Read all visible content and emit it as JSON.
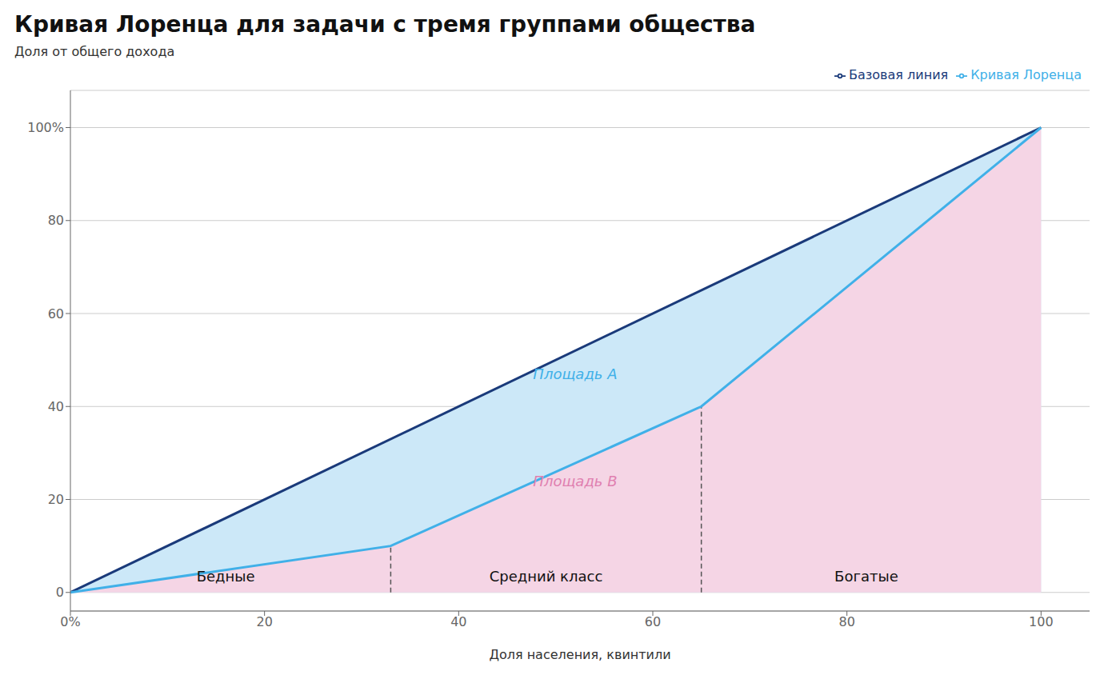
{
  "chart_data": {
    "type": "line",
    "title": "Кривая Лоренца для задачи с тремя группами общества",
    "ylabel": "Доля от общего дохода",
    "xlabel": "Доля населения, квинтили",
    "series": [
      {
        "name": "Базовая линия",
        "color": "#1a3a7a",
        "x": [
          0,
          100
        ],
        "values": [
          0,
          100
        ]
      },
      {
        "name": "Кривая Лоренца",
        "color": "#40b0e8",
        "x": [
          0,
          33,
          65,
          100
        ],
        "values": [
          0,
          10,
          40,
          100
        ]
      }
    ],
    "areas": [
      {
        "label": "Площадь А",
        "color": "#cce8f8",
        "label_color": "#40b0e8",
        "label_x": 52,
        "label_y": 47
      },
      {
        "label": "Площадь В",
        "color": "#f5d5e5",
        "label_color": "#e080b0",
        "label_x": 52,
        "label_y": 24
      }
    ],
    "drop_lines": {
      "x": [
        33,
        65
      ],
      "color": "#555555",
      "line_style": "dashed"
    },
    "annotations": [
      {
        "text": "Бедные",
        "x": 16,
        "y": 1.5
      },
      {
        "text": "Средний класс",
        "x": 49,
        "y": 1.5
      },
      {
        "text": "Богатые",
        "x": 82,
        "y": 1.5
      }
    ],
    "xlim": [
      0,
      105
    ],
    "ylim": [
      -4,
      108
    ],
    "xticks": [
      {
        "value": 0,
        "label": "0%"
      },
      20,
      40,
      60,
      80,
      100
    ],
    "yticks": [
      0,
      20,
      40,
      60,
      80,
      {
        "value": 100,
        "label": "100%"
      }
    ],
    "grid": "y",
    "legend": "upper right"
  }
}
